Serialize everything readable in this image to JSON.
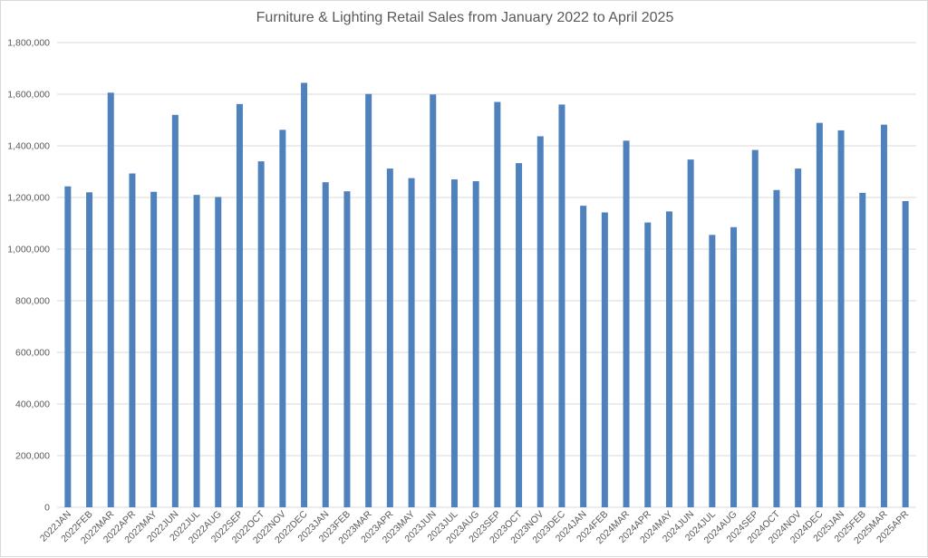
{
  "chart_data": {
    "type": "bar",
    "title": "Furniture & Lighting Retail Sales from January 2022 to April 2025",
    "xlabel": "",
    "ylabel": "",
    "ylim": [
      0,
      1800000
    ],
    "yticks": [
      0,
      200000,
      400000,
      600000,
      800000,
      1000000,
      1200000,
      1400000,
      1600000,
      1800000
    ],
    "ytick_labels": [
      "0",
      "200,000",
      "400,000",
      "600,000",
      "800,000",
      "1,000,000",
      "1,200,000",
      "1,400,000",
      "1,600,000",
      "1,800,000"
    ],
    "grid": true,
    "legend": "none",
    "bar_color": "#4f81bd",
    "categories": [
      "2022JAN",
      "2022FEB",
      "2022MAR",
      "2022APR",
      "2022MAY",
      "2022JUN",
      "2022JUL",
      "2022AUG",
      "2022SEP",
      "2022OCT",
      "2022NOV",
      "2022DEC",
      "2023JAN",
      "2023FEB",
      "2023MAR",
      "2023APR",
      "2023MAY",
      "2023JUN",
      "2023JUL",
      "2023AUG",
      "2023SEP",
      "2023OCT",
      "2023NOV",
      "2023DEC",
      "2024JAN",
      "2024FEB",
      "2024MAR",
      "2024APR",
      "2024MAY",
      "2024JUN",
      "2024JUL",
      "2024AUG",
      "2024SEP",
      "2024OCT",
      "2024NOV",
      "2024DEC",
      "2025JAN",
      "2025FEB",
      "2025MAR",
      "2025APR"
    ],
    "values": [
      1243000,
      1220000,
      1606000,
      1293000,
      1222000,
      1520000,
      1210000,
      1202000,
      1562000,
      1340000,
      1462000,
      1644000,
      1259000,
      1224000,
      1601000,
      1312000,
      1275000,
      1599000,
      1270000,
      1263000,
      1570000,
      1333000,
      1437000,
      1560000,
      1168000,
      1142000,
      1420000,
      1103000,
      1146000,
      1347000,
      1055000,
      1085000,
      1384000,
      1229000,
      1312000,
      1489000,
      1460000,
      1218000,
      1482000,
      1186000
    ]
  }
}
